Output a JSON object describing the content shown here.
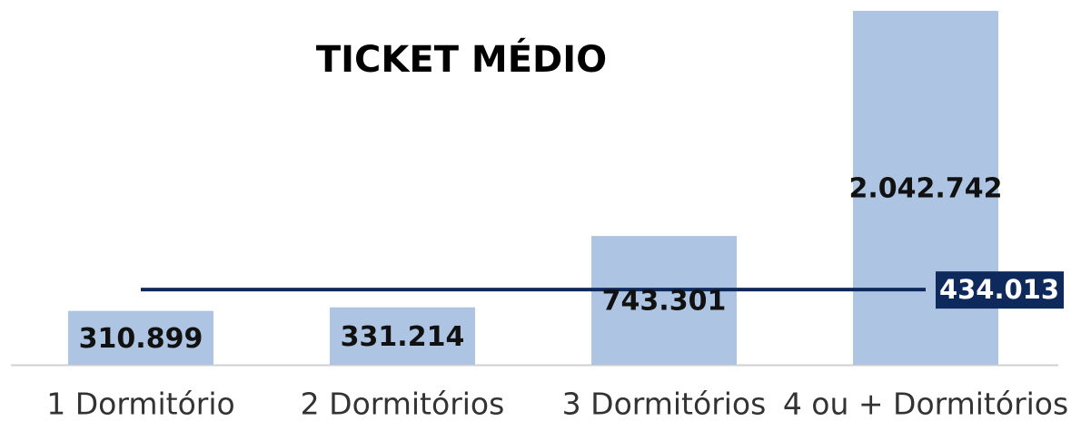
{
  "chart_data": {
    "type": "bar",
    "title": "TICKET MÉDIO",
    "categories": [
      "1 Dormitório",
      "2 Dormitórios",
      "3 Dormitórios",
      "4 ou + Dormitórios"
    ],
    "values": [
      310899,
      331214,
      743301,
      2042742
    ],
    "value_labels": [
      "310.899",
      "331.214",
      "743.301",
      "2.042.742"
    ],
    "color": "#adc4e2",
    "reference_line": {
      "value": 434013,
      "label": "434.013",
      "color": "#0e2a5c"
    },
    "ylim": [
      0,
      2100000
    ]
  }
}
